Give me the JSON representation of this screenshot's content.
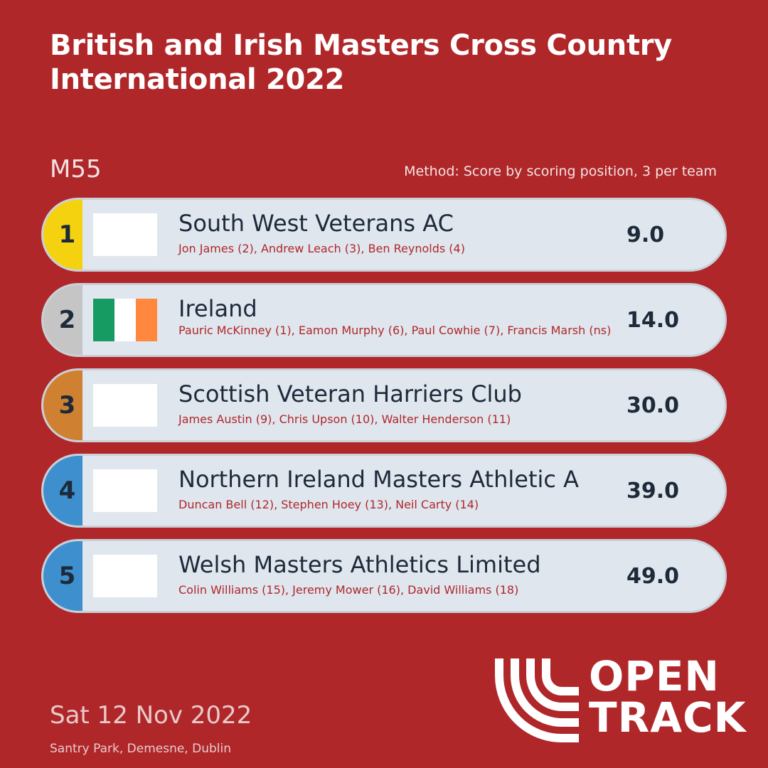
{
  "header": {
    "title": "British and Irish Masters Cross Country International 2022",
    "category": "M55",
    "method": "Method: Score by scoring position, 3 per team"
  },
  "results": [
    {
      "rank": "1",
      "team": "South West Veterans AC",
      "athletes": "Jon James (2), Andrew Leach (3), Ben Reynolds (4)",
      "score": "9.0"
    },
    {
      "rank": "2",
      "team": "Ireland",
      "athletes": "Pauric McKinney (1), Eamon Murphy (6), Paul Cowhie (7), Francis Marsh (ns)",
      "score": "14.0"
    },
    {
      "rank": "3",
      "team": "Scottish Veteran Harriers Club",
      "athletes": "James Austin (9), Chris Upson (10), Walter Henderson (11)",
      "score": "30.0"
    },
    {
      "rank": "4",
      "team": "Northern Ireland Masters Athletic A",
      "athletes": "Duncan Bell (12), Stephen Hoey (13), Neil Carty (14)",
      "score": "39.0"
    },
    {
      "rank": "5",
      "team": "Welsh Masters Athletics Limited",
      "athletes": "Colin Williams (15), Jeremy Mower (16), David Williams (18)",
      "score": "49.0"
    }
  ],
  "flags": {
    "ireland": {
      "green": "#169b62",
      "white": "#ffffff",
      "orange": "#ff883e"
    }
  },
  "colors": {
    "background": "#b0272a",
    "gold": "#f5d20f",
    "silver": "#c5c5c5",
    "bronze": "#cf8031",
    "blue": "#3d8fcd"
  },
  "footer": {
    "date": "Sat 12 Nov 2022",
    "venue": "Santry Park, Demesne, Dublin"
  },
  "logo": {
    "line1": "OPEN",
    "line2": "TRACK",
    "icon": "opentrack-logo-icon"
  }
}
